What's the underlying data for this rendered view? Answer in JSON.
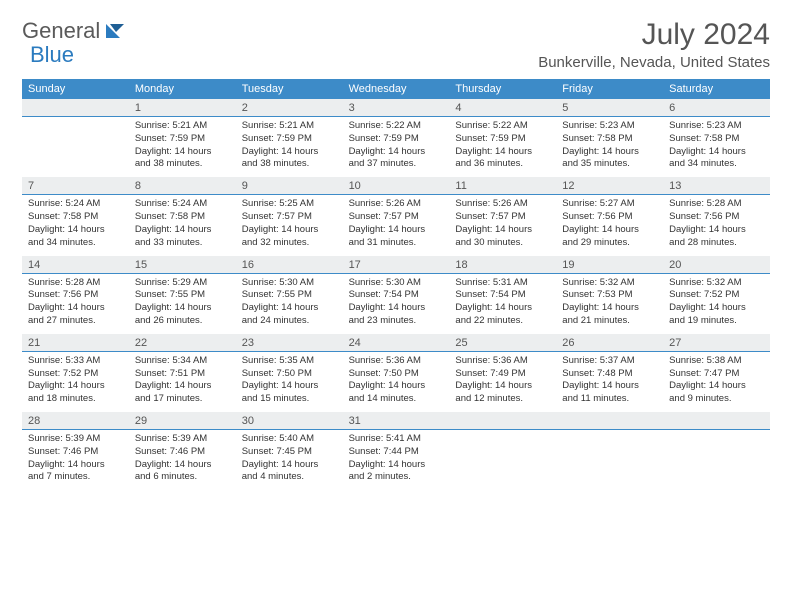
{
  "logo": {
    "part1": "General",
    "part2": "Blue"
  },
  "title": "July 2024",
  "location": "Bunkerville, Nevada, United States",
  "colors": {
    "header_bg": "#3d8bc8",
    "header_text": "#ffffff",
    "daynum_bg": "#eceeef",
    "daynum_border": "#3d8bc8",
    "text": "#333333",
    "title_text": "#555555"
  },
  "day_headers": [
    "Sunday",
    "Monday",
    "Tuesday",
    "Wednesday",
    "Thursday",
    "Friday",
    "Saturday"
  ],
  "weeks": [
    [
      {
        "day": "",
        "sunrise": "",
        "sunset": "",
        "daylight": ""
      },
      {
        "day": "1",
        "sunrise": "Sunrise: 5:21 AM",
        "sunset": "Sunset: 7:59 PM",
        "daylight": "Daylight: 14 hours and 38 minutes."
      },
      {
        "day": "2",
        "sunrise": "Sunrise: 5:21 AM",
        "sunset": "Sunset: 7:59 PM",
        "daylight": "Daylight: 14 hours and 38 minutes."
      },
      {
        "day": "3",
        "sunrise": "Sunrise: 5:22 AM",
        "sunset": "Sunset: 7:59 PM",
        "daylight": "Daylight: 14 hours and 37 minutes."
      },
      {
        "day": "4",
        "sunrise": "Sunrise: 5:22 AM",
        "sunset": "Sunset: 7:59 PM",
        "daylight": "Daylight: 14 hours and 36 minutes."
      },
      {
        "day": "5",
        "sunrise": "Sunrise: 5:23 AM",
        "sunset": "Sunset: 7:58 PM",
        "daylight": "Daylight: 14 hours and 35 minutes."
      },
      {
        "day": "6",
        "sunrise": "Sunrise: 5:23 AM",
        "sunset": "Sunset: 7:58 PM",
        "daylight": "Daylight: 14 hours and 34 minutes."
      }
    ],
    [
      {
        "day": "7",
        "sunrise": "Sunrise: 5:24 AM",
        "sunset": "Sunset: 7:58 PM",
        "daylight": "Daylight: 14 hours and 34 minutes."
      },
      {
        "day": "8",
        "sunrise": "Sunrise: 5:24 AM",
        "sunset": "Sunset: 7:58 PM",
        "daylight": "Daylight: 14 hours and 33 minutes."
      },
      {
        "day": "9",
        "sunrise": "Sunrise: 5:25 AM",
        "sunset": "Sunset: 7:57 PM",
        "daylight": "Daylight: 14 hours and 32 minutes."
      },
      {
        "day": "10",
        "sunrise": "Sunrise: 5:26 AM",
        "sunset": "Sunset: 7:57 PM",
        "daylight": "Daylight: 14 hours and 31 minutes."
      },
      {
        "day": "11",
        "sunrise": "Sunrise: 5:26 AM",
        "sunset": "Sunset: 7:57 PM",
        "daylight": "Daylight: 14 hours and 30 minutes."
      },
      {
        "day": "12",
        "sunrise": "Sunrise: 5:27 AM",
        "sunset": "Sunset: 7:56 PM",
        "daylight": "Daylight: 14 hours and 29 minutes."
      },
      {
        "day": "13",
        "sunrise": "Sunrise: 5:28 AM",
        "sunset": "Sunset: 7:56 PM",
        "daylight": "Daylight: 14 hours and 28 minutes."
      }
    ],
    [
      {
        "day": "14",
        "sunrise": "Sunrise: 5:28 AM",
        "sunset": "Sunset: 7:56 PM",
        "daylight": "Daylight: 14 hours and 27 minutes."
      },
      {
        "day": "15",
        "sunrise": "Sunrise: 5:29 AM",
        "sunset": "Sunset: 7:55 PM",
        "daylight": "Daylight: 14 hours and 26 minutes."
      },
      {
        "day": "16",
        "sunrise": "Sunrise: 5:30 AM",
        "sunset": "Sunset: 7:55 PM",
        "daylight": "Daylight: 14 hours and 24 minutes."
      },
      {
        "day": "17",
        "sunrise": "Sunrise: 5:30 AM",
        "sunset": "Sunset: 7:54 PM",
        "daylight": "Daylight: 14 hours and 23 minutes."
      },
      {
        "day": "18",
        "sunrise": "Sunrise: 5:31 AM",
        "sunset": "Sunset: 7:54 PM",
        "daylight": "Daylight: 14 hours and 22 minutes."
      },
      {
        "day": "19",
        "sunrise": "Sunrise: 5:32 AM",
        "sunset": "Sunset: 7:53 PM",
        "daylight": "Daylight: 14 hours and 21 minutes."
      },
      {
        "day": "20",
        "sunrise": "Sunrise: 5:32 AM",
        "sunset": "Sunset: 7:52 PM",
        "daylight": "Daylight: 14 hours and 19 minutes."
      }
    ],
    [
      {
        "day": "21",
        "sunrise": "Sunrise: 5:33 AM",
        "sunset": "Sunset: 7:52 PM",
        "daylight": "Daylight: 14 hours and 18 minutes."
      },
      {
        "day": "22",
        "sunrise": "Sunrise: 5:34 AM",
        "sunset": "Sunset: 7:51 PM",
        "daylight": "Daylight: 14 hours and 17 minutes."
      },
      {
        "day": "23",
        "sunrise": "Sunrise: 5:35 AM",
        "sunset": "Sunset: 7:50 PM",
        "daylight": "Daylight: 14 hours and 15 minutes."
      },
      {
        "day": "24",
        "sunrise": "Sunrise: 5:36 AM",
        "sunset": "Sunset: 7:50 PM",
        "daylight": "Daylight: 14 hours and 14 minutes."
      },
      {
        "day": "25",
        "sunrise": "Sunrise: 5:36 AM",
        "sunset": "Sunset: 7:49 PM",
        "daylight": "Daylight: 14 hours and 12 minutes."
      },
      {
        "day": "26",
        "sunrise": "Sunrise: 5:37 AM",
        "sunset": "Sunset: 7:48 PM",
        "daylight": "Daylight: 14 hours and 11 minutes."
      },
      {
        "day": "27",
        "sunrise": "Sunrise: 5:38 AM",
        "sunset": "Sunset: 7:47 PM",
        "daylight": "Daylight: 14 hours and 9 minutes."
      }
    ],
    [
      {
        "day": "28",
        "sunrise": "Sunrise: 5:39 AM",
        "sunset": "Sunset: 7:46 PM",
        "daylight": "Daylight: 14 hours and 7 minutes."
      },
      {
        "day": "29",
        "sunrise": "Sunrise: 5:39 AM",
        "sunset": "Sunset: 7:46 PM",
        "daylight": "Daylight: 14 hours and 6 minutes."
      },
      {
        "day": "30",
        "sunrise": "Sunrise: 5:40 AM",
        "sunset": "Sunset: 7:45 PM",
        "daylight": "Daylight: 14 hours and 4 minutes."
      },
      {
        "day": "31",
        "sunrise": "Sunrise: 5:41 AM",
        "sunset": "Sunset: 7:44 PM",
        "daylight": "Daylight: 14 hours and 2 minutes."
      },
      {
        "day": "",
        "sunrise": "",
        "sunset": "",
        "daylight": ""
      },
      {
        "day": "",
        "sunrise": "",
        "sunset": "",
        "daylight": ""
      },
      {
        "day": "",
        "sunrise": "",
        "sunset": "",
        "daylight": ""
      }
    ]
  ]
}
